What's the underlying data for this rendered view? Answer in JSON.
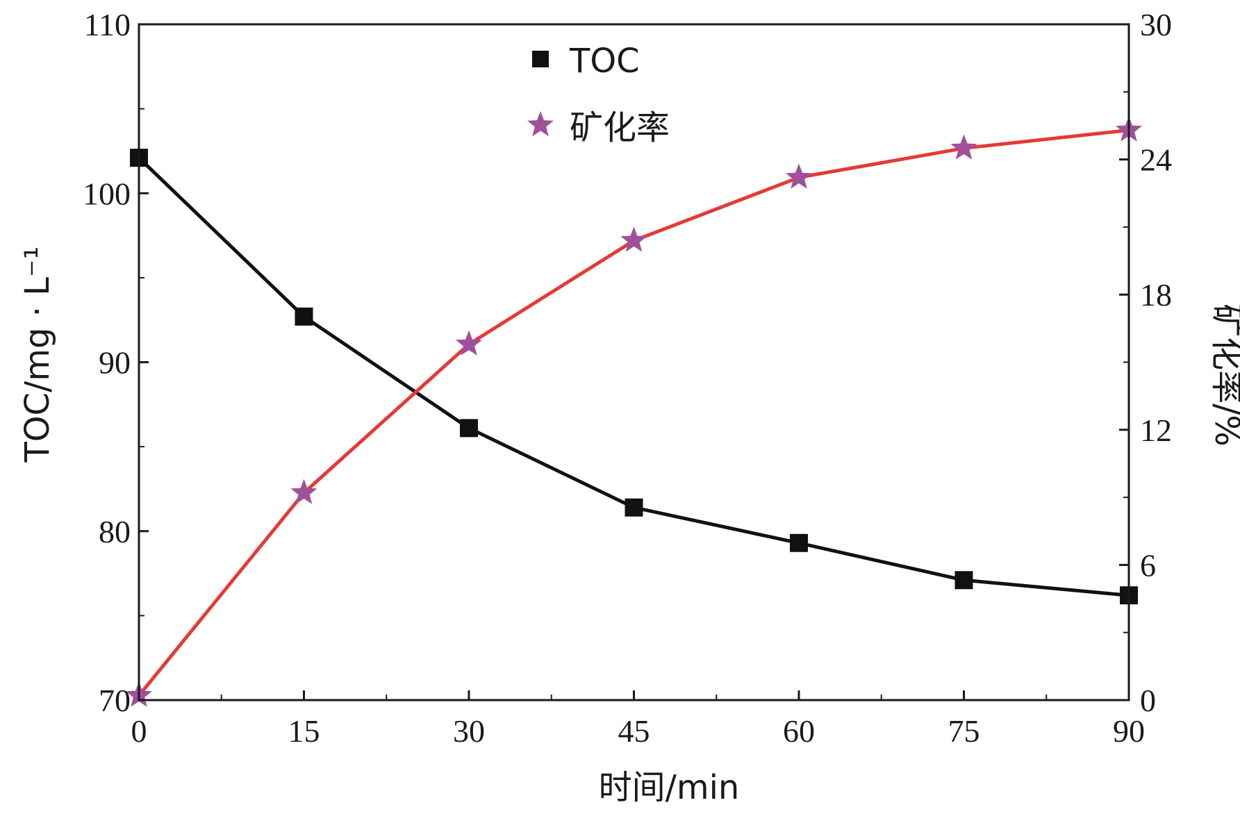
{
  "chart_data": {
    "type": "line",
    "x": [
      0,
      15,
      30,
      45,
      60,
      75,
      90
    ],
    "x_ticks": [
      "0",
      "15",
      "30",
      "45",
      "60",
      "75",
      "90"
    ],
    "xlim": [
      0,
      90
    ],
    "xlabel": "时间/min",
    "ylabel_left": "TOC/mg · L⁻¹",
    "ylabel_right": "矿化率/%",
    "ylim_left": [
      70,
      110
    ],
    "ylim_right": [
      0,
      30
    ],
    "y_ticks_left": [
      "70",
      "80",
      "90",
      "100",
      "110"
    ],
    "y_ticks_right": [
      "0",
      "6",
      "12",
      "18",
      "24",
      "30"
    ],
    "grid": false,
    "legend_position": "top-center",
    "series": [
      {
        "name": "TOC",
        "axis": "left",
        "marker": "square",
        "marker_color": "#111111",
        "line_color": "#111111",
        "values": [
          102.1,
          92.7,
          86.1,
          81.4,
          79.3,
          77.1,
          76.2
        ]
      },
      {
        "name": "矿化率",
        "axis": "right",
        "marker": "star",
        "marker_color": "#a0509a",
        "line_color": "#e53a35",
        "values": [
          0.2,
          9.2,
          15.8,
          20.4,
          23.2,
          24.5,
          25.3
        ]
      }
    ]
  }
}
